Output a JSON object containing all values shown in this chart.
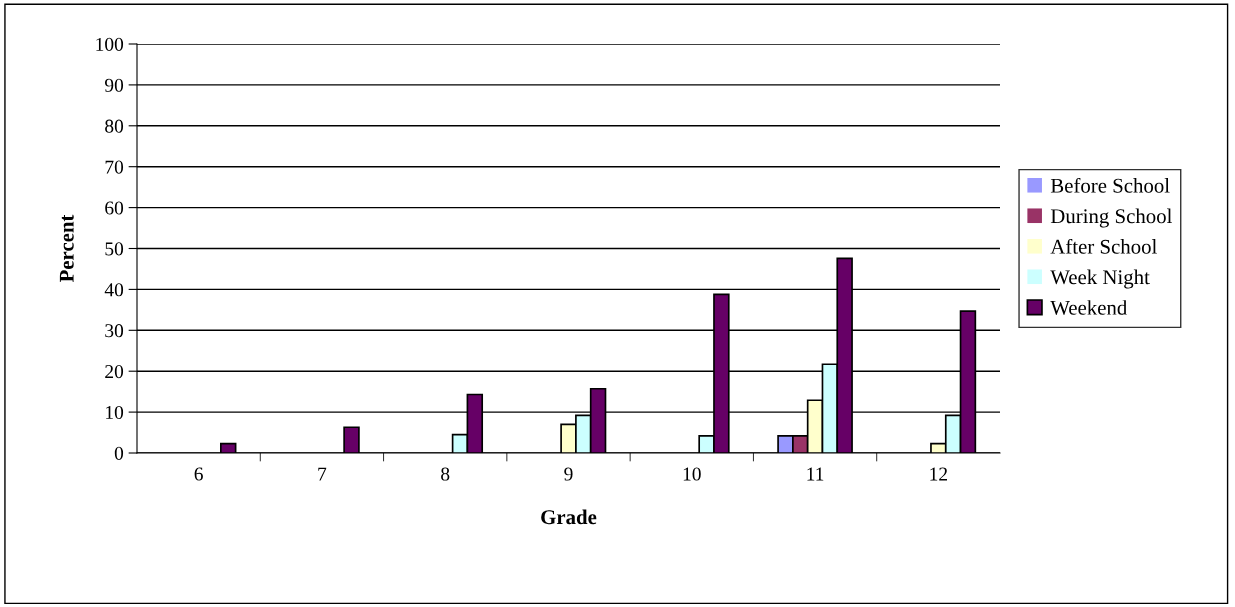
{
  "chart_data": {
    "type": "bar",
    "xlabel": "Grade",
    "ylabel": "Percent",
    "categories": [
      "6",
      "7",
      "8",
      "9",
      "10",
      "11",
      "12"
    ],
    "series": [
      {
        "name": "Before School",
        "color": "#9999ff",
        "values": [
          0,
          0,
          0,
          0,
          0,
          4.2,
          0
        ]
      },
      {
        "name": "During School",
        "color": "#993366",
        "values": [
          0,
          0,
          0,
          0,
          0,
          4.2,
          0
        ]
      },
      {
        "name": "After School",
        "color": "#ffffcc",
        "values": [
          0,
          0,
          0,
          7,
          0,
          12.9,
          2.3
        ]
      },
      {
        "name": "Week Night",
        "color": "#ccffff",
        "values": [
          0,
          0,
          4.5,
          9.2,
          4.2,
          21.7,
          9.2
        ]
      },
      {
        "name": "Weekend",
        "color": "#660066",
        "values": [
          2.3,
          6.3,
          14.3,
          15.7,
          38.8,
          47.6,
          34.7
        ]
      }
    ],
    "ylim": [
      0,
      100
    ],
    "yticks": [
      0,
      10,
      20,
      30,
      40,
      50,
      60,
      70,
      80,
      90,
      100
    ],
    "grid": "y",
    "legend": "right"
  }
}
